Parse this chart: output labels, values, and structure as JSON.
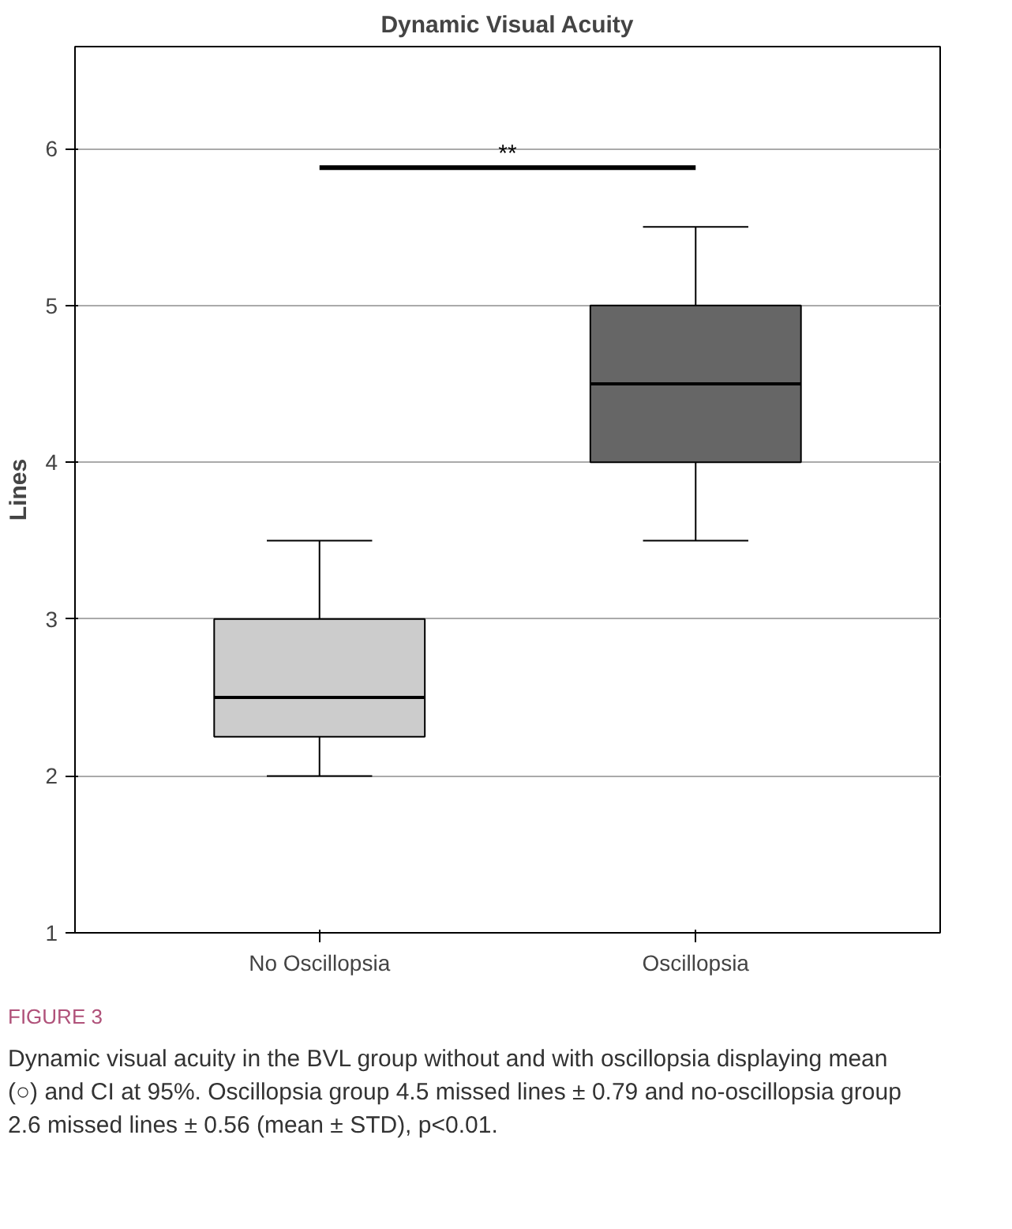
{
  "chart_data": {
    "type": "box",
    "title": "Dynamic Visual Acuity",
    "ylabel": "Lines",
    "categories": [
      "No Oscillopsia",
      "Oscillopsia"
    ],
    "boxes": [
      {
        "low": 2,
        "q1": 2.25,
        "median": 2.5,
        "q3": 3,
        "high": 3.5
      },
      {
        "low": 3.5,
        "q1": 4,
        "median": 4.5,
        "q3": 5,
        "high": 5.5
      }
    ],
    "colors": [
      "#cccccc",
      "#666666"
    ],
    "ylim": [
      1,
      6.65
    ],
    "yticks": [
      1,
      2,
      3,
      4,
      5,
      6
    ],
    "grid": "y",
    "annotations": [
      "**",
      "FIGURE 3",
      "Dynamic visual acuity in the BVL group without and with oscillopsia displaying mean (○) and CI at 95%. Oscillopsia group 4.5 missed lines ± 0.79 and no-oscillopsia group 2.6 missed lines ± 0.56 (mean ± STD), p<0.01."
    ]
  }
}
